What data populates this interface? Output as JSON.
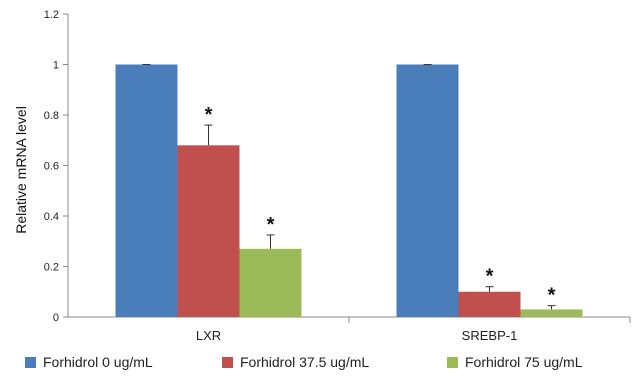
{
  "chart_data": {
    "type": "bar",
    "categories": [
      "LXR",
      "SREBP-1"
    ],
    "series": [
      {
        "name": "Forhidrol 0 ug/mL",
        "color": "#4a7ebb",
        "values": [
          1.0,
          1.0
        ],
        "errors": [
          0.0,
          0.0
        ],
        "significance": [
          "",
          ""
        ]
      },
      {
        "name": "Forhidrol 37.5 ug/mL",
        "color": "#c0504d",
        "values": [
          0.68,
          0.1
        ],
        "errors": [
          0.08,
          0.02
        ],
        "significance": [
          "*",
          "*"
        ]
      },
      {
        "name": "Forhidrol 75 ug/mL",
        "color": "#9bbb59",
        "values": [
          0.27,
          0.03
        ],
        "errors": [
          0.055,
          0.015
        ],
        "significance": [
          "*",
          "*"
        ]
      }
    ],
    "ylabel": "Relative mRNA level",
    "ylim": [
      0,
      1.2
    ],
    "yticks": [
      "0",
      "0.2",
      "0.4",
      "0.6",
      "0.8",
      "1",
      "1.2"
    ],
    "legend_position": "bottom",
    "grid": false
  }
}
